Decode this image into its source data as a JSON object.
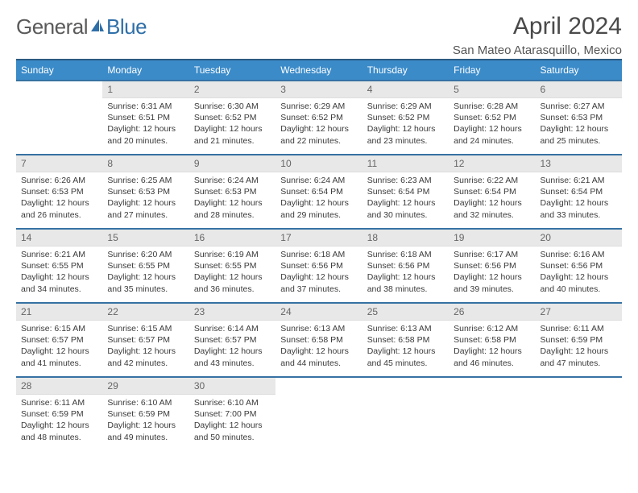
{
  "logo": {
    "textA": "General",
    "textB": "Blue"
  },
  "title": "April 2024",
  "location": "San Mateo Atarasquillo, Mexico",
  "colors": {
    "header_bg": "#3b8bc9",
    "header_border_top": "#2a5a82",
    "row_border": "#3672a3",
    "daynum_bg": "#e8e8e8",
    "text": "#3a3a3a",
    "logo_gray": "#5a5a5a",
    "logo_blue": "#2f6fa8"
  },
  "weekdays": [
    "Sunday",
    "Monday",
    "Tuesday",
    "Wednesday",
    "Thursday",
    "Friday",
    "Saturday"
  ],
  "weeks": [
    [
      null,
      {
        "n": "1",
        "sr": "6:31 AM",
        "ss": "6:51 PM",
        "dl": "12 hours and 20 minutes."
      },
      {
        "n": "2",
        "sr": "6:30 AM",
        "ss": "6:52 PM",
        "dl": "12 hours and 21 minutes."
      },
      {
        "n": "3",
        "sr": "6:29 AM",
        "ss": "6:52 PM",
        "dl": "12 hours and 22 minutes."
      },
      {
        "n": "4",
        "sr": "6:29 AM",
        "ss": "6:52 PM",
        "dl": "12 hours and 23 minutes."
      },
      {
        "n": "5",
        "sr": "6:28 AM",
        "ss": "6:52 PM",
        "dl": "12 hours and 24 minutes."
      },
      {
        "n": "6",
        "sr": "6:27 AM",
        "ss": "6:53 PM",
        "dl": "12 hours and 25 minutes."
      }
    ],
    [
      {
        "n": "7",
        "sr": "6:26 AM",
        "ss": "6:53 PM",
        "dl": "12 hours and 26 minutes."
      },
      {
        "n": "8",
        "sr": "6:25 AM",
        "ss": "6:53 PM",
        "dl": "12 hours and 27 minutes."
      },
      {
        "n": "9",
        "sr": "6:24 AM",
        "ss": "6:53 PM",
        "dl": "12 hours and 28 minutes."
      },
      {
        "n": "10",
        "sr": "6:24 AM",
        "ss": "6:54 PM",
        "dl": "12 hours and 29 minutes."
      },
      {
        "n": "11",
        "sr": "6:23 AM",
        "ss": "6:54 PM",
        "dl": "12 hours and 30 minutes."
      },
      {
        "n": "12",
        "sr": "6:22 AM",
        "ss": "6:54 PM",
        "dl": "12 hours and 32 minutes."
      },
      {
        "n": "13",
        "sr": "6:21 AM",
        "ss": "6:54 PM",
        "dl": "12 hours and 33 minutes."
      }
    ],
    [
      {
        "n": "14",
        "sr": "6:21 AM",
        "ss": "6:55 PM",
        "dl": "12 hours and 34 minutes."
      },
      {
        "n": "15",
        "sr": "6:20 AM",
        "ss": "6:55 PM",
        "dl": "12 hours and 35 minutes."
      },
      {
        "n": "16",
        "sr": "6:19 AM",
        "ss": "6:55 PM",
        "dl": "12 hours and 36 minutes."
      },
      {
        "n": "17",
        "sr": "6:18 AM",
        "ss": "6:56 PM",
        "dl": "12 hours and 37 minutes."
      },
      {
        "n": "18",
        "sr": "6:18 AM",
        "ss": "6:56 PM",
        "dl": "12 hours and 38 minutes."
      },
      {
        "n": "19",
        "sr": "6:17 AM",
        "ss": "6:56 PM",
        "dl": "12 hours and 39 minutes."
      },
      {
        "n": "20",
        "sr": "6:16 AM",
        "ss": "6:56 PM",
        "dl": "12 hours and 40 minutes."
      }
    ],
    [
      {
        "n": "21",
        "sr": "6:15 AM",
        "ss": "6:57 PM",
        "dl": "12 hours and 41 minutes."
      },
      {
        "n": "22",
        "sr": "6:15 AM",
        "ss": "6:57 PM",
        "dl": "12 hours and 42 minutes."
      },
      {
        "n": "23",
        "sr": "6:14 AM",
        "ss": "6:57 PM",
        "dl": "12 hours and 43 minutes."
      },
      {
        "n": "24",
        "sr": "6:13 AM",
        "ss": "6:58 PM",
        "dl": "12 hours and 44 minutes."
      },
      {
        "n": "25",
        "sr": "6:13 AM",
        "ss": "6:58 PM",
        "dl": "12 hours and 45 minutes."
      },
      {
        "n": "26",
        "sr": "6:12 AM",
        "ss": "6:58 PM",
        "dl": "12 hours and 46 minutes."
      },
      {
        "n": "27",
        "sr": "6:11 AM",
        "ss": "6:59 PM",
        "dl": "12 hours and 47 minutes."
      }
    ],
    [
      {
        "n": "28",
        "sr": "6:11 AM",
        "ss": "6:59 PM",
        "dl": "12 hours and 48 minutes."
      },
      {
        "n": "29",
        "sr": "6:10 AM",
        "ss": "6:59 PM",
        "dl": "12 hours and 49 minutes."
      },
      {
        "n": "30",
        "sr": "6:10 AM",
        "ss": "7:00 PM",
        "dl": "12 hours and 50 minutes."
      },
      null,
      null,
      null,
      null
    ]
  ],
  "labels": {
    "sunrise": "Sunrise:",
    "sunset": "Sunset:",
    "daylight": "Daylight:"
  }
}
